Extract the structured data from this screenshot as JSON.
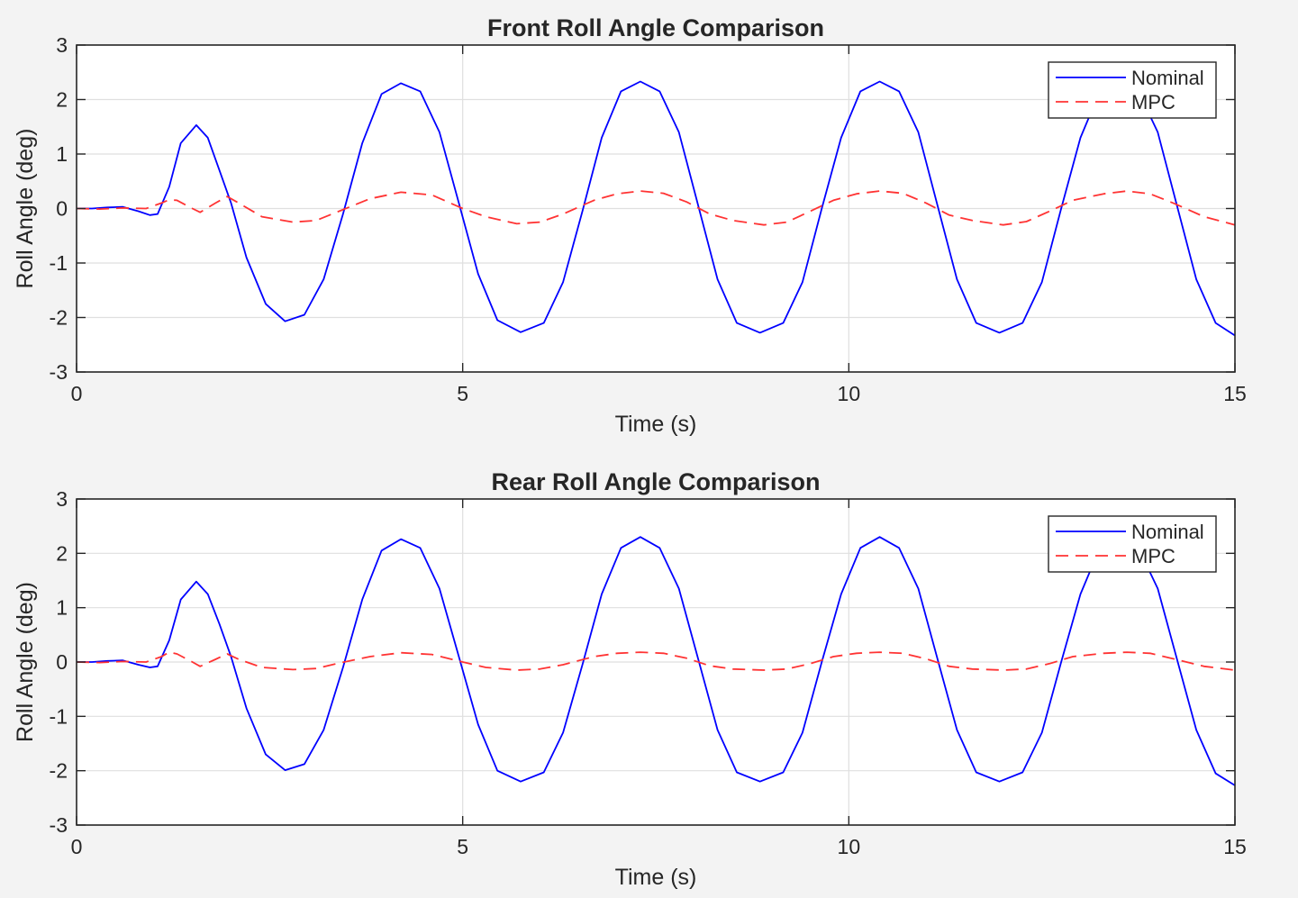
{
  "chart_data": [
    {
      "type": "line",
      "title": "Front Roll Angle Comparison",
      "xlabel": "Time (s)",
      "ylabel": "Roll Angle (deg)",
      "xlim": [
        0,
        15
      ],
      "ylim": [
        -3,
        3
      ],
      "xticks": [
        "0",
        "5",
        "10",
        "15"
      ],
      "yticks": [
        "3",
        "2",
        "1",
        "0",
        "-1",
        "-2",
        "-3"
      ],
      "grid": true,
      "legend_position": "top-right",
      "series": [
        {
          "name": "Nominal",
          "color": "#0000ff",
          "style": "solid",
          "x": [
            0,
            0.2,
            0.4,
            0.6,
            0.8,
            0.95,
            1.05,
            1.2,
            1.35,
            1.55,
            1.7,
            1.85,
            2.0,
            2.2,
            2.45,
            2.7,
            2.95,
            3.2,
            3.45,
            3.7,
            3.95,
            4.2,
            4.45,
            4.7,
            4.95,
            5.2,
            5.45,
            5.75,
            6.05,
            6.3,
            6.55,
            6.8,
            7.05,
            7.3,
            7.55,
            7.8,
            8.05,
            8.3,
            8.55,
            8.85,
            9.15,
            9.4,
            9.65,
            9.9,
            10.15,
            10.4,
            10.65,
            10.9,
            11.15,
            11.4,
            11.65,
            11.95,
            12.25,
            12.5,
            12.75,
            13.0,
            13.25,
            13.5,
            13.75,
            14.0,
            14.25,
            14.5,
            14.75,
            15.0
          ],
          "y": [
            0,
            0,
            0.02,
            0.03,
            -0.05,
            -0.12,
            -0.1,
            0.4,
            1.2,
            1.53,
            1.3,
            0.7,
            0.1,
            -0.9,
            -1.75,
            -2.07,
            -1.95,
            -1.3,
            -0.1,
            1.2,
            2.1,
            2.3,
            2.15,
            1.4,
            0.1,
            -1.2,
            -2.05,
            -2.27,
            -2.1,
            -1.35,
            -0.05,
            1.3,
            2.15,
            2.33,
            2.15,
            1.4,
            0.05,
            -1.3,
            -2.1,
            -2.28,
            -2.1,
            -1.35,
            0.0,
            1.3,
            2.15,
            2.33,
            2.15,
            1.4,
            0.05,
            -1.3,
            -2.1,
            -2.28,
            -2.1,
            -1.35,
            0.0,
            1.3,
            2.15,
            2.33,
            2.15,
            1.4,
            0.05,
            -1.3,
            -2.1,
            -2.33
          ]
        },
        {
          "name": "MPC",
          "color": "#ff3333",
          "style": "dashed",
          "x": [
            0,
            0.3,
            0.6,
            0.9,
            1.1,
            1.2,
            1.3,
            1.5,
            1.6,
            1.8,
            1.95,
            2.1,
            2.4,
            2.8,
            3.1,
            3.4,
            3.8,
            4.2,
            4.6,
            5.0,
            5.3,
            5.7,
            6.0,
            6.3,
            6.7,
            7.0,
            7.3,
            7.6,
            7.9,
            8.2,
            8.5,
            8.9,
            9.2,
            9.5,
            9.8,
            10.1,
            10.4,
            10.7,
            11.0,
            11.3,
            11.6,
            12.0,
            12.3,
            12.6,
            12.9,
            13.3,
            13.6,
            13.9,
            14.2,
            14.6,
            15.0
          ],
          "y": [
            0,
            -0.01,
            0.01,
            0.0,
            0.1,
            0.16,
            0.15,
            0.0,
            -0.07,
            0.1,
            0.22,
            0.1,
            -0.15,
            -0.25,
            -0.22,
            -0.05,
            0.18,
            0.3,
            0.25,
            0.0,
            -0.15,
            -0.28,
            -0.25,
            -0.1,
            0.15,
            0.27,
            0.32,
            0.28,
            0.12,
            -0.1,
            -0.22,
            -0.3,
            -0.25,
            -0.05,
            0.15,
            0.27,
            0.32,
            0.28,
            0.1,
            -0.12,
            -0.22,
            -0.3,
            -0.24,
            -0.05,
            0.15,
            0.27,
            0.32,
            0.27,
            0.1,
            -0.15,
            -0.3
          ]
        }
      ]
    },
    {
      "type": "line",
      "title": "Rear Roll Angle Comparison",
      "xlabel": "Time (s)",
      "ylabel": "Roll Angle (deg)",
      "xlim": [
        0,
        15
      ],
      "ylim": [
        -3,
        3
      ],
      "xticks": [
        "0",
        "5",
        "10",
        "15"
      ],
      "yticks": [
        "3",
        "2",
        "1",
        "0",
        "-1",
        "-2",
        "-3"
      ],
      "grid": true,
      "legend_position": "top-right",
      "series": [
        {
          "name": "Nominal",
          "color": "#0000ff",
          "style": "solid",
          "x": [
            0,
            0.2,
            0.4,
            0.6,
            0.8,
            0.95,
            1.05,
            1.2,
            1.35,
            1.55,
            1.7,
            1.85,
            2.0,
            2.2,
            2.45,
            2.7,
            2.95,
            3.2,
            3.45,
            3.7,
            3.95,
            4.2,
            4.45,
            4.7,
            4.95,
            5.2,
            5.45,
            5.75,
            6.05,
            6.3,
            6.55,
            6.8,
            7.05,
            7.3,
            7.55,
            7.8,
            8.05,
            8.3,
            8.55,
            8.85,
            9.15,
            9.4,
            9.65,
            9.9,
            10.15,
            10.4,
            10.65,
            10.9,
            11.15,
            11.4,
            11.65,
            11.95,
            12.25,
            12.5,
            12.75,
            13.0,
            13.25,
            13.5,
            13.75,
            14.0,
            14.25,
            14.5,
            14.75,
            15.0
          ],
          "y": [
            0,
            0,
            0.02,
            0.03,
            -0.05,
            -0.1,
            -0.08,
            0.4,
            1.15,
            1.48,
            1.25,
            0.7,
            0.1,
            -0.85,
            -1.7,
            -1.99,
            -1.88,
            -1.25,
            -0.1,
            1.15,
            2.05,
            2.26,
            2.1,
            1.35,
            0.1,
            -1.15,
            -2.0,
            -2.2,
            -2.03,
            -1.3,
            -0.05,
            1.25,
            2.1,
            2.3,
            2.1,
            1.35,
            0.05,
            -1.25,
            -2.03,
            -2.2,
            -2.03,
            -1.3,
            0.0,
            1.25,
            2.1,
            2.3,
            2.1,
            1.35,
            0.05,
            -1.25,
            -2.03,
            -2.2,
            -2.03,
            -1.3,
            0.0,
            1.25,
            2.1,
            2.3,
            2.1,
            1.35,
            0.05,
            -1.25,
            -2.05,
            -2.27
          ]
        },
        {
          "name": "MPC",
          "color": "#ff3333",
          "style": "dashed",
          "x": [
            0,
            0.3,
            0.6,
            0.9,
            1.1,
            1.2,
            1.3,
            1.5,
            1.6,
            1.8,
            1.95,
            2.1,
            2.4,
            2.8,
            3.1,
            3.4,
            3.8,
            4.2,
            4.6,
            5.0,
            5.3,
            5.7,
            6.0,
            6.3,
            6.7,
            7.0,
            7.3,
            7.6,
            7.9,
            8.2,
            8.5,
            8.9,
            9.2,
            9.5,
            9.8,
            10.1,
            10.4,
            10.7,
            11.0,
            11.3,
            11.6,
            12.0,
            12.3,
            12.6,
            12.9,
            13.3,
            13.6,
            13.9,
            14.2,
            14.6,
            15.0
          ],
          "y": [
            0,
            -0.01,
            0.01,
            0.0,
            0.1,
            0.18,
            0.15,
            0.0,
            -0.08,
            0.05,
            0.15,
            0.05,
            -0.1,
            -0.14,
            -0.12,
            -0.02,
            0.1,
            0.17,
            0.14,
            0.0,
            -0.1,
            -0.15,
            -0.13,
            -0.05,
            0.1,
            0.16,
            0.18,
            0.16,
            0.07,
            -0.07,
            -0.13,
            -0.15,
            -0.13,
            -0.03,
            0.1,
            0.16,
            0.18,
            0.16,
            0.06,
            -0.08,
            -0.13,
            -0.15,
            -0.13,
            -0.03,
            0.1,
            0.16,
            0.18,
            0.16,
            0.06,
            -0.08,
            -0.15
          ]
        }
      ]
    }
  ]
}
